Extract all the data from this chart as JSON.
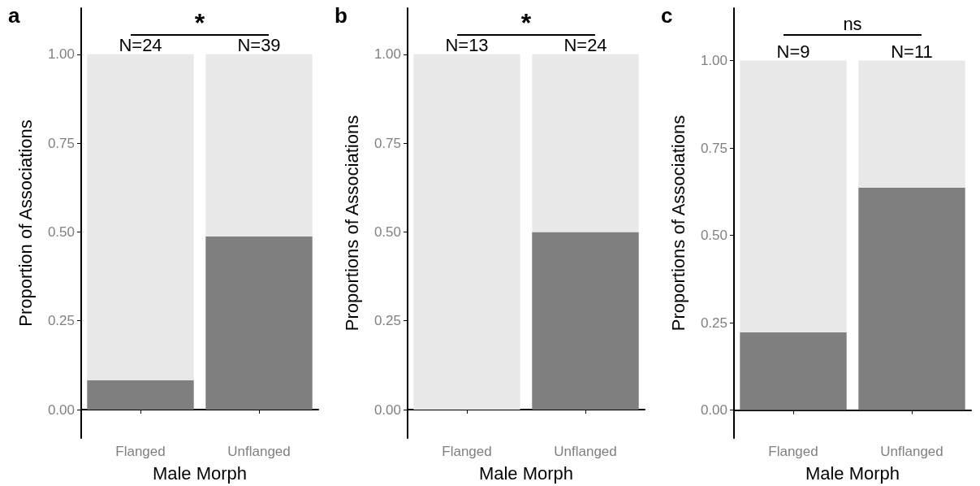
{
  "chart_data": [
    {
      "type": "bar",
      "title": "a",
      "xlabel": "Male Morph",
      "ylabel": "Proportion of Associations",
      "categories": [
        "Flanged",
        "Unflanged"
      ],
      "stacked": true,
      "series": [
        {
          "color": "#7f7f7f",
          "values": [
            0.083,
            0.487
          ]
        },
        {
          "color": "#e8e8e8",
          "values": [
            0.917,
            0.513
          ]
        }
      ],
      "ylim": [
        -0.08,
        1.13
      ],
      "yticks": [
        {
          "value": 0,
          "label": "0.00"
        },
        {
          "value": 0.25,
          "label": "0.25"
        },
        {
          "value": 0.5,
          "label": "0.50"
        },
        {
          "value": 0.75,
          "label": "0.75"
        },
        {
          "value": 1,
          "label": "1.00"
        }
      ],
      "annotations": [
        "*",
        {
          "text": "N=24",
          "x": "Flanged",
          "y": 1
        },
        {
          "text": "N=39",
          "x": "Unflanged",
          "y": 1
        }
      ]
    },
    {
      "type": "bar",
      "title": "b",
      "xlabel": "Male Morph",
      "ylabel": "Proportions of Associations",
      "categories": [
        "Flanged",
        "Unflanged"
      ],
      "stacked": true,
      "series": [
        {
          "color": "#7f7f7f",
          "values": [
            0,
            0.5
          ]
        },
        {
          "color": "#e8e8e8",
          "values": [
            1,
            0.5
          ]
        }
      ],
      "ylim": [
        -0.08,
        1.13
      ],
      "yticks": [
        {
          "value": 0,
          "label": "0.00"
        },
        {
          "value": 0.25,
          "label": "0.25"
        },
        {
          "value": 0.5,
          "label": "0.50"
        },
        {
          "value": 0.75,
          "label": "0.75"
        },
        {
          "value": 1,
          "label": "1.00"
        }
      ],
      "annotations": [
        "*",
        {
          "text": "N=13",
          "x": "Flanged",
          "y": 1
        },
        {
          "text": "N=24",
          "x": "Unflanged",
          "y": 1
        }
      ]
    },
    {
      "type": "bar",
      "title": "c",
      "xlabel": "Male Morph",
      "ylabel": "Proportions of Associations",
      "categories": [
        "Flanged",
        "Unflanged"
      ],
      "stacked": true,
      "series": [
        {
          "color": "#7f7f7f",
          "values": [
            0.222,
            0.636
          ]
        },
        {
          "color": "#e8e8e8",
          "values": [
            0.778,
            0.364
          ]
        }
      ],
      "ylim": [
        -0.08,
        1.15
      ],
      "yticks": [
        {
          "value": 0,
          "label": "0.00"
        },
        {
          "value": 0.25,
          "label": "0.25"
        },
        {
          "value": 0.5,
          "label": "0.50"
        },
        {
          "value": 0.75,
          "label": "0.75"
        },
        {
          "value": 1,
          "label": "1.00"
        }
      ],
      "annotations": [
        "ns",
        {
          "text": "N=9",
          "x": "Flanged",
          "y": 1
        },
        {
          "text": "N=11",
          "x": "Unflanged",
          "y": 1
        }
      ]
    }
  ]
}
